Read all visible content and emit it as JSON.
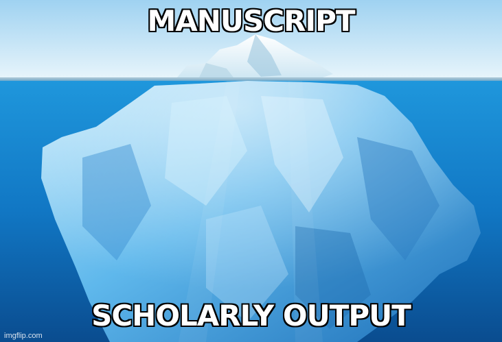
{
  "meme": {
    "top_text": "MANUSCRIPT",
    "bottom_text": "SCHOLARLY OUTPUT",
    "watermark": "imgflip.com"
  },
  "scene": {
    "subject": "iceberg-icon",
    "colors": {
      "sky_top": "#bfe4f7",
      "sky_bottom": "#e6f4fb",
      "water_surface": "#1b8fd6",
      "water_deep": "#0a4f93",
      "ice_light": "#e8f6fd",
      "ice_mid": "#6cc1ee",
      "ice_shadow": "#2a7fc4"
    }
  }
}
